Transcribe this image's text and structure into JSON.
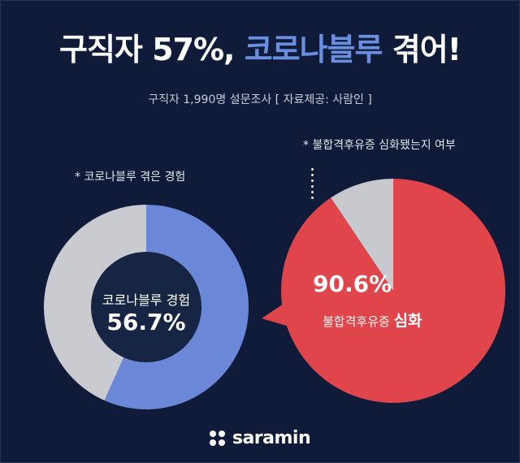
{
  "header": {
    "title_pre": "구직자  57%, ",
    "title_accent": "코로나블루",
    "title_post": " 겪어!",
    "subtitle": "구직자 1,990명 설문조사 [ 자료제공: 사람인 ]"
  },
  "notes": {
    "left": "* 코로나블루 겪은 경험",
    "right": "*  불합격후유증 심화됐는지 여부"
  },
  "chart_data": [
    {
      "type": "pie",
      "title": "* 코로나블루 겪은 경험",
      "slices": [
        {
          "label": "코로나블루 경험",
          "value": 56.7,
          "color": "#6b87d8"
        },
        {
          "label": "",
          "value": 43.3,
          "color": "#c9cbd0"
        }
      ],
      "center_label": "코로나블루 경험",
      "center_value": "56.7%"
    },
    {
      "type": "pie",
      "title": "*  불합격후유증 심화됐는지 여부",
      "slices": [
        {
          "label": "불합격후유증 심화",
          "value": 90.6,
          "color": "#e0454b"
        },
        {
          "label": "",
          "value": 9.4,
          "color": "#c7c9ce"
        }
      ],
      "label_pre": "불합격후유증 ",
      "label_strong": "심화",
      "value_label": "90.6%"
    }
  ],
  "colors": {
    "background": "#0f1b38",
    "accent": "#6b8fe0",
    "inner_circle": "#172544"
  },
  "logo": {
    "text": "saramin"
  }
}
